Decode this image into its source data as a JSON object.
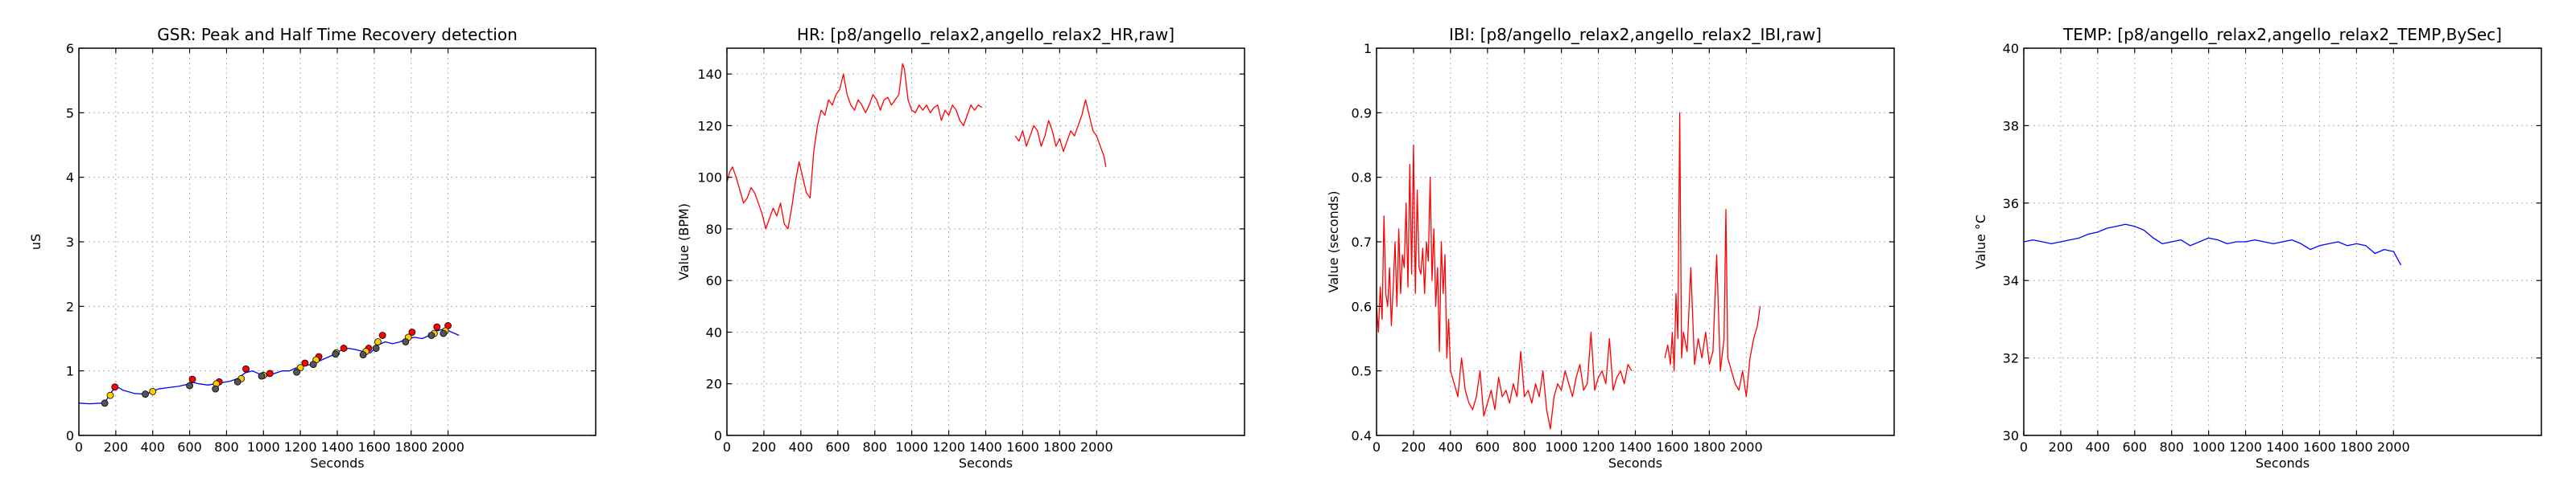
{
  "chart_data": [
    {
      "type": "line",
      "title": "GSR: Peak and Half Time Recovery detection",
      "xlabel": "Seconds",
      "ylabel": "uS",
      "xlim": [
        0,
        2800
      ],
      "ylim": [
        0,
        6
      ],
      "xticks": [
        0,
        200,
        400,
        600,
        800,
        1000,
        1200,
        1400,
        1600,
        1800,
        2000
      ],
      "yticks": [
        0,
        1,
        2,
        3,
        4,
        5,
        6
      ],
      "grid": true,
      "series": [
        {
          "color": "#0000ff",
          "x": [
            0,
            60,
            120,
            150,
            170,
            190,
            210,
            240,
            300,
            360,
            400,
            430,
            480,
            540,
            600,
            620,
            650,
            700,
            740,
            780,
            820,
            860,
            900,
            940,
            980,
            1020,
            1060,
            1100,
            1140,
            1180,
            1220,
            1260,
            1300,
            1340,
            1380,
            1420,
            1460,
            1500,
            1540,
            1580,
            1620,
            1660,
            1700,
            1740,
            1780,
            1820,
            1860,
            1900,
            1940,
            1980,
            2020,
            2060
          ],
          "y": [
            0.5,
            0.49,
            0.5,
            0.55,
            0.65,
            0.72,
            0.75,
            0.7,
            0.65,
            0.64,
            0.68,
            0.72,
            0.74,
            0.76,
            0.8,
            0.82,
            0.8,
            0.78,
            0.8,
            0.82,
            0.84,
            0.88,
            0.97,
            1.0,
            0.95,
            0.92,
            0.96,
            1.0,
            1.0,
            1.05,
            1.08,
            1.1,
            1.15,
            1.2,
            1.25,
            1.32,
            1.35,
            1.33,
            1.3,
            1.28,
            1.4,
            1.45,
            1.42,
            1.45,
            1.5,
            1.52,
            1.5,
            1.55,
            1.62,
            1.65,
            1.6,
            1.55
          ]
        }
      ],
      "markers": [
        {
          "color": "#ff0000",
          "x": [
            195,
            615,
            760,
            905,
            1035,
            1225,
            1300,
            1435,
            1570,
            1645,
            1805,
            1940,
            2000
          ],
          "y": [
            0.75,
            0.87,
            0.83,
            1.03,
            0.96,
            1.12,
            1.22,
            1.35,
            1.35,
            1.55,
            1.6,
            1.68,
            1.7
          ]
        },
        {
          "color": "#ffcc00",
          "x": [
            170,
            400,
            745,
            880,
            1000,
            1200,
            1285,
            1395,
            1555,
            1620,
            1785,
            1925,
            1985
          ],
          "y": [
            0.62,
            0.68,
            0.8,
            0.88,
            0.93,
            1.05,
            1.17,
            1.28,
            1.3,
            1.45,
            1.52,
            1.58,
            1.62
          ]
        },
        {
          "color": "#555555",
          "x": [
            140,
            360,
            600,
            740,
            860,
            990,
            1180,
            1270,
            1390,
            1540,
            1610,
            1770,
            1910,
            1975
          ],
          "y": [
            0.5,
            0.64,
            0.77,
            0.72,
            0.83,
            0.92,
            0.98,
            1.1,
            1.26,
            1.25,
            1.35,
            1.45,
            1.55,
            1.58
          ]
        }
      ]
    },
    {
      "type": "line",
      "title": "HR: [p8/angello_relax2,angello_relax2_HR,raw]",
      "xlabel": "Seconds",
      "ylabel": "Value (BPM)",
      "xlim": [
        0,
        2800
      ],
      "ylim": [
        0,
        150
      ],
      "xticks": [
        0,
        200,
        400,
        600,
        800,
        1000,
        1200,
        1400,
        1600,
        1800,
        2000
      ],
      "yticks": [
        0,
        20,
        40,
        60,
        80,
        100,
        120,
        140
      ],
      "grid": true,
      "series": [
        {
          "color": "#ff0000",
          "x": [
            0,
            15,
            30,
            50,
            70,
            90,
            110,
            130,
            150,
            170,
            190,
            210,
            230,
            250,
            270,
            290,
            310,
            330,
            350,
            370,
            390,
            410,
            430,
            450,
            470,
            490,
            510,
            530,
            550,
            570,
            590,
            610,
            630,
            650,
            670,
            690,
            710,
            730,
            750,
            770,
            790,
            810,
            830,
            850,
            870,
            890,
            910,
            930,
            950,
            960,
            980,
            1000,
            1020,
            1040,
            1060,
            1080,
            1100,
            1120,
            1140,
            1160,
            1180,
            1200,
            1220,
            1240,
            1260,
            1280,
            1300,
            1320,
            1340,
            1360,
            1380
          ],
          "y": [
            98,
            102,
            104,
            100,
            95,
            90,
            92,
            96,
            94,
            90,
            86,
            80,
            84,
            88,
            85,
            90,
            82,
            80,
            88,
            98,
            106,
            100,
            94,
            92,
            110,
            120,
            126,
            124,
            130,
            128,
            132,
            134,
            140,
            132,
            128,
            126,
            130,
            128,
            125,
            128,
            132,
            130,
            126,
            130,
            131,
            128,
            130,
            132,
            144,
            142,
            130,
            126,
            125,
            128,
            126,
            128,
            125,
            127,
            128,
            122,
            126,
            124,
            128,
            126,
            122,
            120,
            124,
            128,
            126,
            128,
            127
          ]
        },
        {
          "color": "#ff0000",
          "x": [
            1560,
            1580,
            1600,
            1620,
            1640,
            1660,
            1680,
            1700,
            1720,
            1740,
            1760,
            1780,
            1800,
            1820,
            1840,
            1860,
            1880,
            1900,
            1920,
            1940,
            1960,
            1980,
            2000,
            2020,
            2040,
            2050
          ],
          "y": [
            116,
            114,
            118,
            112,
            116,
            120,
            118,
            112,
            116,
            122,
            118,
            112,
            115,
            110,
            114,
            118,
            116,
            120,
            124,
            130,
            124,
            118,
            116,
            112,
            108,
            104
          ]
        }
      ]
    },
    {
      "type": "line",
      "title": "IBI: [p8/angello_relax2,angello_relax2_IBI,raw]",
      "xlabel": "Seconds",
      "ylabel": "Value (seconds)",
      "xlim": [
        0,
        2800
      ],
      "ylim": [
        0.4,
        1.0
      ],
      "xticks": [
        0,
        200,
        400,
        600,
        800,
        1000,
        1200,
        1400,
        1600,
        1800,
        2000
      ],
      "yticks": [
        0.4,
        0.5,
        0.6,
        0.7,
        0.8,
        0.9,
        1.0
      ],
      "grid": true,
      "series": [
        {
          "color": "#ff0000",
          "x": [
            0,
            10,
            20,
            30,
            40,
            50,
            60,
            70,
            80,
            90,
            100,
            110,
            120,
            130,
            140,
            150,
            160,
            170,
            180,
            190,
            200,
            210,
            220,
            230,
            240,
            250,
            260,
            270,
            280,
            290,
            300,
            310,
            320,
            330,
            340,
            350,
            360,
            370,
            380,
            390,
            400,
            420,
            440,
            460,
            480,
            500,
            520,
            540,
            560,
            580,
            600,
            620,
            640,
            660,
            680,
            700,
            720,
            740,
            760,
            780,
            800,
            820,
            840,
            860,
            880,
            900,
            920,
            940,
            960,
            980,
            1000,
            1020,
            1040,
            1060,
            1080,
            1100,
            1120,
            1140,
            1160,
            1180,
            1200,
            1220,
            1240,
            1260,
            1280,
            1300,
            1320,
            1340,
            1360,
            1380
          ],
          "y": [
            0.6,
            0.56,
            0.63,
            0.58,
            0.74,
            0.62,
            0.6,
            0.66,
            0.57,
            0.63,
            0.7,
            0.6,
            0.72,
            0.62,
            0.68,
            0.66,
            0.76,
            0.63,
            0.82,
            0.65,
            0.85,
            0.62,
            0.78,
            0.66,
            0.65,
            0.69,
            0.62,
            0.7,
            0.67,
            0.8,
            0.64,
            0.72,
            0.6,
            0.66,
            0.53,
            0.7,
            0.62,
            0.68,
            0.52,
            0.58,
            0.5,
            0.48,
            0.46,
            0.52,
            0.47,
            0.45,
            0.44,
            0.46,
            0.5,
            0.43,
            0.45,
            0.47,
            0.44,
            0.49,
            0.46,
            0.47,
            0.45,
            0.48,
            0.46,
            0.53,
            0.46,
            0.47,
            0.45,
            0.48,
            0.46,
            0.5,
            0.44,
            0.41,
            0.46,
            0.48,
            0.47,
            0.5,
            0.48,
            0.46,
            0.49,
            0.51,
            0.47,
            0.48,
            0.56,
            0.47,
            0.49,
            0.5,
            0.48,
            0.55,
            0.47,
            0.49,
            0.5,
            0.48,
            0.51,
            0.5
          ]
        },
        {
          "color": "#ff0000",
          "x": [
            1560,
            1575,
            1590,
            1600,
            1610,
            1620,
            1630,
            1640,
            1650,
            1660,
            1680,
            1700,
            1720,
            1740,
            1760,
            1780,
            1800,
            1820,
            1840,
            1860,
            1880,
            1890,
            1900,
            1920,
            1940,
            1960,
            1980,
            2000,
            2020,
            2040,
            2060,
            2075
          ],
          "y": [
            0.52,
            0.54,
            0.51,
            0.56,
            0.5,
            0.62,
            0.55,
            0.9,
            0.52,
            0.56,
            0.53,
            0.66,
            0.51,
            0.55,
            0.52,
            0.56,
            0.51,
            0.53,
            0.68,
            0.5,
            0.55,
            0.75,
            0.52,
            0.5,
            0.48,
            0.47,
            0.5,
            0.46,
            0.52,
            0.55,
            0.57,
            0.6
          ]
        }
      ]
    },
    {
      "type": "line",
      "title": "TEMP: [p8/angello_relax2,angello_relax2_TEMP,BySec]",
      "xlabel": "Seconds",
      "ylabel": "Value °C",
      "xlim": [
        0,
        2800
      ],
      "ylim": [
        30,
        40
      ],
      "xticks": [
        0,
        200,
        400,
        600,
        800,
        1000,
        1200,
        1400,
        1600,
        1800,
        2000
      ],
      "yticks": [
        30,
        32,
        34,
        36,
        38,
        40
      ],
      "grid": true,
      "series": [
        {
          "color": "#0000ff",
          "x": [
            0,
            50,
            100,
            150,
            200,
            250,
            300,
            350,
            400,
            450,
            500,
            550,
            600,
            650,
            700,
            750,
            800,
            850,
            900,
            950,
            1000,
            1050,
            1100,
            1150,
            1200,
            1250,
            1300,
            1350,
            1400,
            1450,
            1500,
            1550,
            1600,
            1650,
            1700,
            1750,
            1800,
            1850,
            1900,
            1950,
            2000,
            2040
          ],
          "y": [
            35.0,
            35.05,
            35.0,
            34.95,
            35.0,
            35.05,
            35.1,
            35.2,
            35.25,
            35.35,
            35.4,
            35.45,
            35.4,
            35.3,
            35.1,
            34.95,
            35.0,
            35.05,
            34.9,
            35.0,
            35.1,
            35.05,
            34.95,
            35.0,
            35.0,
            35.05,
            35.0,
            34.95,
            35.0,
            35.05,
            34.95,
            34.8,
            34.9,
            34.95,
            35.0,
            34.9,
            34.95,
            34.9,
            34.7,
            34.8,
            34.75,
            34.4
          ]
        }
      ]
    }
  ]
}
